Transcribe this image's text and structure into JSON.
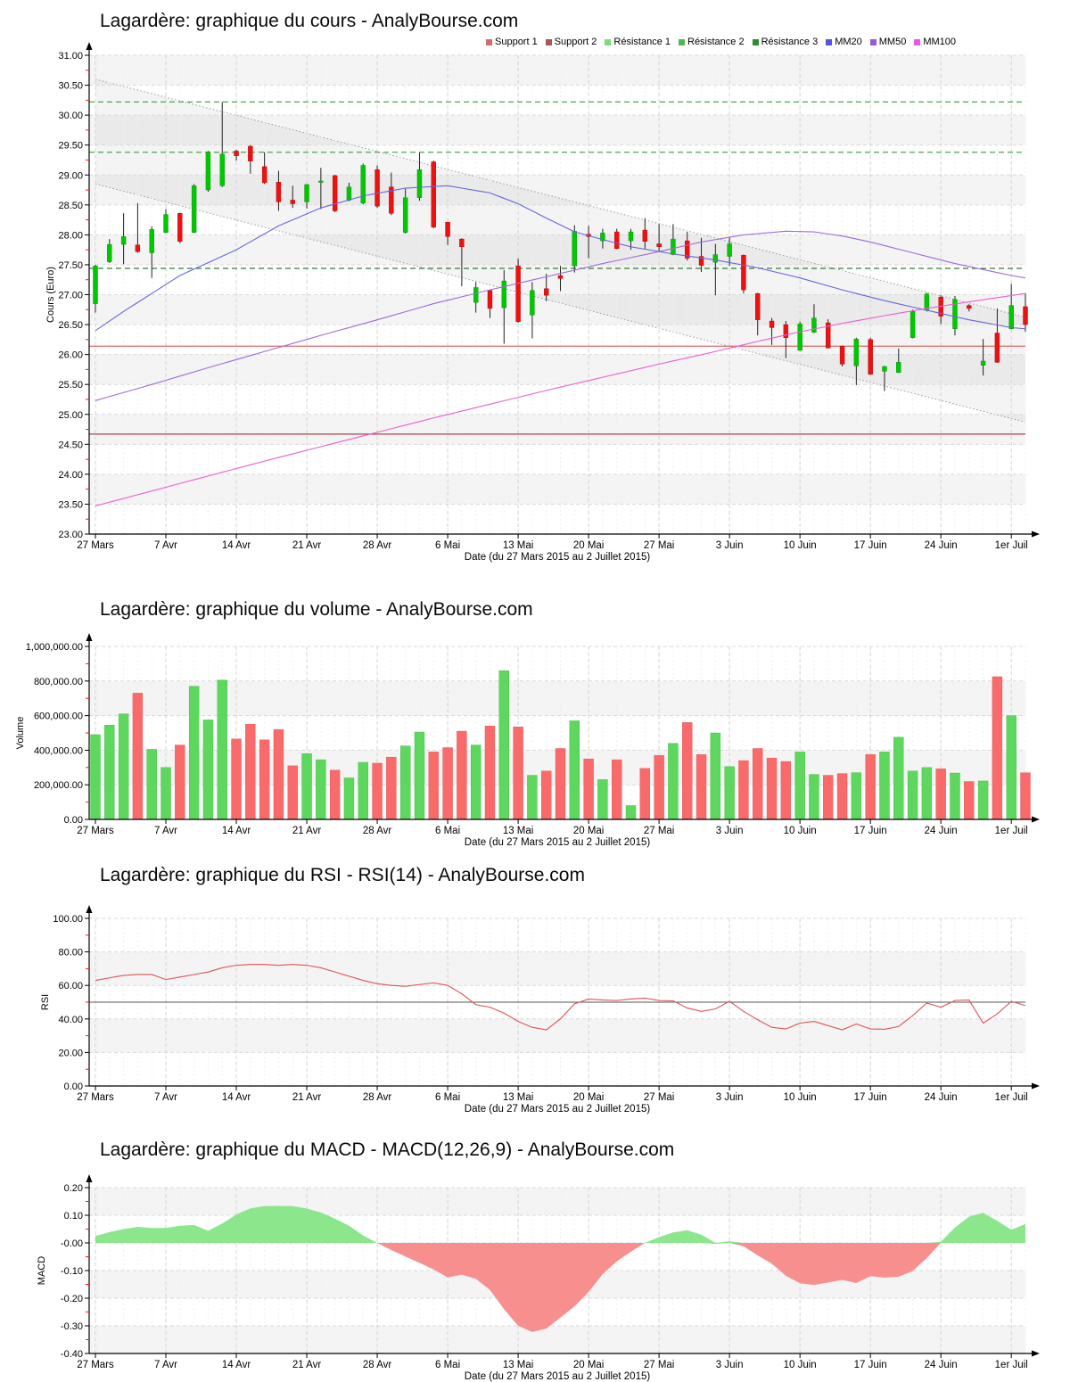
{
  "site": "AnalyBourse.com",
  "instrument": "Lagardère",
  "period_label": "Date (du 27 Mars 2015 au 2 Juillet 2015)",
  "chart_data": [
    {
      "type": "candlestick",
      "title": "Lagardère: graphique du cours - AnalyBourse.com",
      "ylabel": "Cours (Euro)",
      "xlabel": "Date (du 27 Mars 2015 au 2 Juillet 2015)",
      "ylim": [
        23.0,
        31.0
      ],
      "ytick_step": 0.5,
      "grid": true,
      "legend_position": "top-right",
      "legend": [
        {
          "label": "Support 1",
          "color": "#d96a6a"
        },
        {
          "label": "Support 2",
          "color": "#b05555"
        },
        {
          "label": "Résistance 1",
          "color": "#7adc7a"
        },
        {
          "label": "Résistance 2",
          "color": "#50b850"
        },
        {
          "label": "Résistance 3",
          "color": "#2e8b2e"
        },
        {
          "label": "MM20",
          "color": "#5555e0"
        },
        {
          "label": "MM50",
          "color": "#9b59d0"
        },
        {
          "label": "MM100",
          "color": "#ee55ee"
        }
      ],
      "x_tick_indices": [
        0,
        5,
        10,
        15,
        20,
        25,
        30,
        35,
        40,
        45,
        50,
        55,
        60,
        65
      ],
      "x_tick_labels": [
        "27 Mars",
        "7 Avr",
        "14 Avr",
        "21 Avr",
        "28 Avr",
        "6 Mai",
        "13 Mai",
        "20 Mai",
        "27 Mai",
        "3 Juin",
        "10 Juin",
        "17 Juin",
        "24 Juin",
        "1er Juil"
      ],
      "dates": [
        "27/03",
        "30/03",
        "31/03",
        "01/04",
        "02/04",
        "07/04",
        "08/04",
        "09/04",
        "10/04",
        "13/04",
        "14/04",
        "15/04",
        "16/04",
        "17/04",
        "20/04",
        "21/04",
        "22/04",
        "23/04",
        "24/04",
        "27/04",
        "28/04",
        "29/04",
        "30/04",
        "04/05",
        "05/05",
        "06/05",
        "07/05",
        "08/05",
        "11/05",
        "12/05",
        "13/05",
        "14/05",
        "15/05",
        "18/05",
        "19/05",
        "20/05",
        "21/05",
        "22/05",
        "25/05",
        "26/05",
        "27/05",
        "28/05",
        "29/05",
        "01/06",
        "02/06",
        "03/06",
        "04/06",
        "05/06",
        "08/06",
        "09/06",
        "10/06",
        "11/06",
        "12/06",
        "15/06",
        "16/06",
        "17/06",
        "18/06",
        "19/06",
        "22/06",
        "23/06",
        "24/06",
        "25/06",
        "26/06",
        "29/06",
        "30/06",
        "01/07",
        "02/07"
      ],
      "ohlc": [
        [
          26.85,
          27.5,
          26.7,
          27.48
        ],
        [
          27.55,
          27.93,
          27.53,
          27.84
        ],
        [
          27.84,
          28.36,
          27.51,
          27.97
        ],
        [
          27.83,
          28.53,
          27.7,
          27.72
        ],
        [
          27.7,
          28.14,
          27.28,
          28.09
        ],
        [
          28.04,
          28.43,
          28.03,
          28.34
        ],
        [
          28.36,
          28.37,
          27.86,
          27.89
        ],
        [
          28.04,
          28.85,
          28.03,
          28.82
        ],
        [
          28.75,
          29.4,
          28.72,
          29.38
        ],
        [
          28.82,
          30.22,
          28.8,
          29.35
        ],
        [
          29.4,
          29.42,
          29.24,
          29.32
        ],
        [
          29.48,
          29.5,
          29.02,
          29.23
        ],
        [
          29.14,
          29.38,
          28.85,
          28.87
        ],
        [
          28.88,
          29.07,
          28.4,
          28.55
        ],
        [
          28.58,
          28.82,
          28.45,
          28.52
        ],
        [
          28.55,
          28.85,
          28.44,
          28.84
        ],
        [
          28.88,
          29.12,
          28.43,
          28.9
        ],
        [
          28.99,
          29.0,
          28.38,
          28.4
        ],
        [
          28.58,
          28.87,
          28.56,
          28.8
        ],
        [
          28.53,
          29.19,
          28.51,
          29.16
        ],
        [
          29.09,
          29.16,
          28.45,
          28.48
        ],
        [
          28.8,
          29.04,
          28.33,
          28.36
        ],
        [
          28.04,
          28.77,
          28.02,
          28.62
        ],
        [
          28.62,
          29.37,
          28.57,
          29.09
        ],
        [
          29.22,
          29.24,
          28.11,
          28.13
        ],
        [
          28.21,
          28.22,
          27.83,
          27.97
        ],
        [
          27.93,
          27.94,
          27.14,
          27.8
        ],
        [
          26.87,
          27.21,
          26.7,
          27.12
        ],
        [
          27.07,
          27.08,
          26.61,
          26.77
        ],
        [
          26.78,
          27.41,
          26.18,
          27.23
        ],
        [
          27.48,
          27.6,
          26.53,
          26.55
        ],
        [
          26.66,
          27.21,
          26.27,
          27.07
        ],
        [
          27.1,
          27.35,
          26.89,
          26.99
        ],
        [
          27.32,
          27.48,
          27.06,
          27.27
        ],
        [
          27.48,
          28.16,
          27.37,
          28.06
        ],
        [
          28.01,
          28.15,
          27.61,
          27.97
        ],
        [
          27.9,
          28.1,
          27.77,
          28.03
        ],
        [
          28.05,
          28.1,
          27.76,
          27.77
        ],
        [
          27.9,
          28.1,
          27.75,
          28.05
        ],
        [
          28.08,
          28.28,
          27.76,
          27.89
        ],
        [
          27.85,
          28.18,
          27.72,
          27.8
        ],
        [
          27.67,
          28.18,
          27.66,
          27.93
        ],
        [
          27.9,
          28.05,
          27.57,
          27.61
        ],
        [
          27.64,
          27.95,
          27.38,
          27.49
        ],
        [
          27.54,
          27.85,
          26.99,
          27.67
        ],
        [
          27.64,
          27.95,
          27.48,
          27.85
        ],
        [
          27.66,
          27.67,
          27.02,
          27.08
        ],
        [
          27.02,
          27.03,
          26.32,
          26.58
        ],
        [
          26.56,
          26.61,
          26.16,
          26.45
        ],
        [
          26.5,
          26.56,
          25.94,
          26.28
        ],
        [
          26.07,
          26.55,
          26.06,
          26.51
        ],
        [
          26.37,
          26.84,
          26.36,
          26.61
        ],
        [
          26.53,
          26.59,
          26.1,
          26.11
        ],
        [
          26.14,
          26.15,
          25.8,
          25.84
        ],
        [
          25.81,
          26.28,
          25.49,
          26.26
        ],
        [
          26.25,
          26.28,
          25.66,
          25.67
        ],
        [
          25.72,
          25.81,
          25.39,
          25.8
        ],
        [
          25.7,
          26.1,
          25.69,
          25.87
        ],
        [
          26.28,
          26.75,
          26.27,
          26.72
        ],
        [
          26.74,
          27.03,
          26.72,
          27.01
        ],
        [
          26.96,
          26.99,
          26.51,
          26.64
        ],
        [
          26.43,
          26.98,
          26.32,
          26.92
        ],
        [
          26.82,
          26.84,
          26.72,
          26.77
        ],
        [
          25.82,
          26.26,
          25.65,
          25.89
        ],
        [
          26.36,
          26.77,
          25.86,
          25.87
        ],
        [
          26.43,
          27.18,
          26.42,
          26.82
        ],
        [
          26.8,
          27.02,
          26.38,
          26.5
        ]
      ],
      "up_color": "#00c800",
      "down_color": "#ee1111",
      "levels": [
        {
          "name": "Résistance 3",
          "value": 30.22,
          "color": "#4aa84a",
          "dashed": true
        },
        {
          "name": "Résistance 2",
          "value": 29.38,
          "color": "#4aa84a",
          "dashed": true
        },
        {
          "name": "Résistance 1",
          "value": 27.44,
          "color": "#2e7d32",
          "dashed": true
        },
        {
          "name": "Support 1",
          "value": 26.14,
          "color": "#e06666",
          "dashed": false
        },
        {
          "name": "Support 2",
          "value": 24.67,
          "color": "#a94442",
          "dashed": false
        }
      ],
      "trend_channel": {
        "upper": [
          [
            0,
            30.6
          ],
          [
            66,
            26.62
          ]
        ],
        "lower": [
          [
            0,
            28.85
          ],
          [
            66,
            24.87
          ]
        ],
        "line_color": "#9a9a9a",
        "fill": "rgba(150,150,150,0.10)"
      },
      "moving_averages": [
        {
          "name": "MM20",
          "color": "#6666dd",
          "points": [
            [
              0,
              26.4
            ],
            [
              2,
              26.72
            ],
            [
              6,
              27.32
            ],
            [
              10,
              27.75
            ],
            [
              13,
              28.15
            ],
            [
              16,
              28.45
            ],
            [
              19,
              28.65
            ],
            [
              22,
              28.78
            ],
            [
              25,
              28.82
            ],
            [
              28,
              28.7
            ],
            [
              30,
              28.52
            ],
            [
              32,
              28.28
            ],
            [
              34,
              28.05
            ],
            [
              36,
              27.92
            ],
            [
              38,
              27.8
            ],
            [
              41,
              27.68
            ],
            [
              44,
              27.58
            ],
            [
              47,
              27.45
            ],
            [
              50,
              27.28
            ],
            [
              53,
              27.08
            ],
            [
              56,
              26.9
            ],
            [
              59,
              26.74
            ],
            [
              62,
              26.58
            ],
            [
              65,
              26.45
            ],
            [
              66,
              26.43
            ]
          ]
        },
        {
          "name": "MM50",
          "color": "#a06ad8",
          "points": [
            [
              0,
              25.23
            ],
            [
              4,
              25.5
            ],
            [
              8,
              25.78
            ],
            [
              12,
              26.05
            ],
            [
              16,
              26.32
            ],
            [
              20,
              26.58
            ],
            [
              24,
              26.85
            ],
            [
              28,
              27.08
            ],
            [
              32,
              27.3
            ],
            [
              36,
              27.52
            ],
            [
              40,
              27.72
            ],
            [
              43,
              27.88
            ],
            [
              46,
              28.0
            ],
            [
              49,
              28.06
            ],
            [
              51,
              28.05
            ],
            [
              53,
              27.98
            ],
            [
              55,
              27.88
            ],
            [
              57,
              27.76
            ],
            [
              59,
              27.64
            ],
            [
              61,
              27.52
            ],
            [
              63,
              27.42
            ],
            [
              65,
              27.32
            ],
            [
              66,
              27.28
            ]
          ]
        },
        {
          "name": "MM100",
          "color": "#ea5fd0",
          "points": [
            [
              0,
              23.47
            ],
            [
              4,
              23.72
            ],
            [
              8,
              23.97
            ],
            [
              12,
              24.22
            ],
            [
              16,
              24.46
            ],
            [
              20,
              24.7
            ],
            [
              24,
              24.94
            ],
            [
              28,
              25.17
            ],
            [
              32,
              25.4
            ],
            [
              36,
              25.62
            ],
            [
              40,
              25.84
            ],
            [
              44,
              26.05
            ],
            [
              47,
              26.22
            ],
            [
              50,
              26.38
            ],
            [
              53,
              26.52
            ],
            [
              56,
              26.65
            ],
            [
              59,
              26.77
            ],
            [
              62,
              26.88
            ],
            [
              64,
              26.95
            ],
            [
              66,
              27.02
            ]
          ]
        }
      ]
    },
    {
      "type": "bar",
      "title": "Lagardère: graphique du volume - AnalyBourse.com",
      "ylabel": "Volume",
      "xlabel": "Date (du 27 Mars 2015 au 2 Juillet 2015)",
      "ylim": [
        0,
        1000000
      ],
      "ytick_step": 200000,
      "x": "same trading dates as candlestick chart",
      "values": [
        490000,
        545000,
        610000,
        730000,
        405000,
        300000,
        430000,
        770000,
        575000,
        805000,
        465000,
        550000,
        460000,
        520000,
        310000,
        380000,
        345000,
        285000,
        240000,
        330000,
        325000,
        360000,
        425000,
        505000,
        390000,
        415000,
        510000,
        430000,
        540000,
        860000,
        535000,
        255000,
        280000,
        410000,
        570000,
        350000,
        230000,
        345000,
        80000,
        295000,
        370000,
        440000,
        560000,
        375000,
        500000,
        305000,
        340000,
        410000,
        355000,
        335000,
        390000,
        260000,
        255000,
        265000,
        270000,
        375000,
        390000,
        475000,
        280000,
        300000,
        293000,
        268000,
        219000,
        222000,
        825000,
        600000,
        270000
      ],
      "bar_color_rule": "green if close >= open else red",
      "up_color": "#5ed75e",
      "down_color": "#f96a6a"
    },
    {
      "type": "line",
      "title": "Lagardère: graphique du RSI - RSI(14) - AnalyBourse.com",
      "ylabel": "RSI",
      "xlabel": "Date (du 27 Mars 2015 au 2 Juillet 2015)",
      "ylim": [
        0,
        100
      ],
      "ytick_step": 20,
      "mid_line": 50,
      "line_color": "#dd5555",
      "x": "same trading dates as candlestick chart",
      "values": [
        63,
        64.5,
        66,
        66.5,
        66.5,
        63.5,
        65,
        66.5,
        68,
        70.5,
        72,
        72.5,
        72.5,
        72,
        72.5,
        72,
        70.5,
        68,
        65.5,
        63,
        61,
        60,
        59.5,
        60.5,
        61.5,
        60,
        55,
        48.5,
        47,
        43.5,
        38.5,
        35,
        33.5,
        40,
        49,
        51.9,
        51.3,
        51,
        51.9,
        52.4,
        51,
        50.8,
        46.5,
        44.5,
        46,
        50.5,
        44.5,
        39.5,
        35,
        34,
        37.5,
        38.5,
        36,
        33.5,
        37,
        34,
        33.8,
        35.5,
        42,
        49.5,
        47,
        51,
        51.3,
        37.5,
        43,
        50.5,
        48
      ]
    },
    {
      "type": "area",
      "title": "Lagardère: graphique du MACD - MACD(12,26,9) - AnalyBourse.com",
      "ylabel": "MACD",
      "xlabel": "Date (du 27 Mars 2015 au 2 Juillet 2015)",
      "ylim": [
        -0.4,
        0.2
      ],
      "ytick_step": 0.1,
      "pos_color": "#8ce68c",
      "neg_color": "#f88f8f",
      "x": "same trading dates as candlestick chart",
      "values": [
        0.025,
        0.039,
        0.05,
        0.058,
        0.054,
        0.054,
        0.062,
        0.065,
        0.044,
        0.07,
        0.103,
        0.125,
        0.133,
        0.134,
        0.133,
        0.124,
        0.11,
        0.088,
        0.062,
        0.027,
        0,
        -0.026,
        -0.049,
        -0.072,
        -0.096,
        -0.125,
        -0.115,
        -0.13,
        -0.17,
        -0.24,
        -0.3,
        -0.322,
        -0.31,
        -0.27,
        -0.23,
        -0.178,
        -0.113,
        -0.067,
        -0.032,
        0,
        0.021,
        0.038,
        0.046,
        0.03,
        -0.003,
        0.006,
        -0.012,
        -0.045,
        -0.075,
        -0.119,
        -0.146,
        -0.152,
        -0.143,
        -0.134,
        -0.145,
        -0.12,
        -0.126,
        -0.122,
        -0.102,
        -0.055,
        0.004,
        0.056,
        0.095,
        0.109,
        0.08,
        0.048,
        0.068
      ]
    }
  ]
}
